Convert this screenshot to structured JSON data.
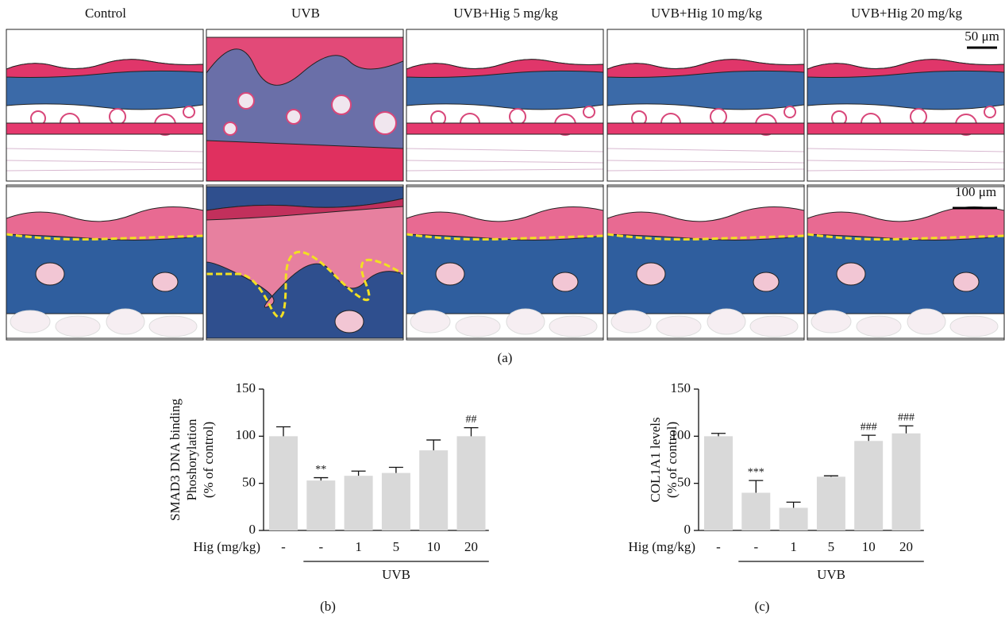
{
  "panel_a": {
    "columns": [
      "Control",
      "UVB",
      "UVB+Hig 5 mg/kg",
      "UVB+Hig 10 mg/kg",
      "UVB+Hig 20 mg/kg"
    ],
    "scale_bar_top": "50 μm",
    "scale_bar_bottom": "100 μm",
    "caption": "(a)"
  },
  "chart_data": [
    {
      "type": "bar",
      "ylabel": [
        "SMAD3 DNA binding",
        "Phoshorylation",
        "(% of control)"
      ],
      "xlabel": "Hig (mg/kg)",
      "group_label": "UVB",
      "caption": "(b)",
      "categories": [
        "-",
        "-",
        "1",
        "5",
        "10",
        "20"
      ],
      "values": [
        100,
        53,
        58,
        61,
        85,
        100
      ],
      "errors": [
        10,
        3,
        5,
        6,
        11,
        9
      ],
      "significance": [
        null,
        "**",
        null,
        null,
        null,
        "##"
      ],
      "color": "#d9d9d9",
      "ylim": [
        0,
        150
      ],
      "yticks": [
        0,
        50,
        100,
        150
      ]
    },
    {
      "type": "bar",
      "ylabel": [
        "COL1A1 levels",
        "(% of control)"
      ],
      "xlabel": "Hig (mg/kg)",
      "group_label": "UVB",
      "caption": "(c)",
      "categories": [
        "-",
        "-",
        "1",
        "5",
        "10",
        "20"
      ],
      "values": [
        100,
        40,
        24,
        57,
        95,
        103
      ],
      "errors": [
        3,
        13,
        6,
        1,
        6,
        8
      ],
      "significance": [
        null,
        "***",
        null,
        null,
        "###",
        "###"
      ],
      "color": "#d9d9d9",
      "ylim": [
        0,
        150
      ],
      "yticks": [
        0,
        50,
        100,
        150
      ]
    }
  ]
}
